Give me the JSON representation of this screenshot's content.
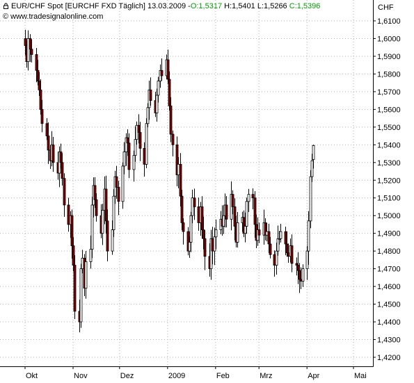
{
  "header": {
    "symbol": "EUR/CHF Spot [EURCHF FXD  Täglich]",
    "date": "13.03.2009",
    "open": "O:1,5317",
    "high": "H:1,5401",
    "low": "L:1,5266",
    "close": "C:1,5396",
    "source": "© www.tradesignalonline.com",
    "currency": "CHF"
  },
  "colors": {
    "up_body": "#ffffff",
    "down_body": "#800000",
    "outline": "#000000",
    "grid": "#b0b0b0",
    "ohlc_green": "#00a000"
  },
  "chart_data": {
    "type": "candlestick",
    "title": "EUR/CHF Spot [EURCHF FXD  Täglich]",
    "y_unit": "CHF",
    "ylim": [
      1.41,
      1.62
    ],
    "yticks": [
      "1,4200",
      "1,4300",
      "1,4400",
      "1,4500",
      "1,4600",
      "1,4700",
      "1,4800",
      "1,4900",
      "1,5000",
      "1,5100",
      "1,5200",
      "1,5300",
      "1,5400",
      "1,5500",
      "1,5600",
      "1,5700",
      "1,5800",
      "1,5900",
      "1,6000",
      "1,6100"
    ],
    "ytick_values": [
      1.42,
      1.43,
      1.44,
      1.45,
      1.46,
      1.47,
      1.48,
      1.49,
      1.5,
      1.51,
      1.52,
      1.53,
      1.54,
      1.55,
      1.56,
      1.57,
      1.58,
      1.59,
      1.6,
      1.61
    ],
    "xticks": [
      {
        "label": "Okt",
        "day": 1
      },
      {
        "label": "Nov",
        "day": 32
      },
      {
        "label": "Dez",
        "day": 62
      },
      {
        "label": "2009",
        "day": 93
      },
      {
        "label": "Feb",
        "day": 124
      },
      {
        "label": "Mrz",
        "day": 152
      },
      {
        "label": "Apr",
        "day": 183
      },
      {
        "label": "Mai",
        "day": 213
      }
    ],
    "grid": true,
    "last_bar": {
      "date": "13.03.2009",
      "open": 1.5317,
      "high": 1.5401,
      "low": 1.5266,
      "close": 1.5396
    },
    "closes": [
      1.596,
      1.587,
      1.6,
      1.594,
      1.591,
      1.582,
      1.576,
      1.571,
      1.56,
      1.552,
      1.545,
      1.537,
      1.531,
      1.54,
      1.53,
      1.524,
      1.536,
      1.53,
      1.521,
      1.506,
      1.495,
      1.5,
      1.483,
      1.472,
      1.446,
      1.44,
      1.47,
      1.476,
      1.459,
      1.474,
      1.481,
      1.506,
      1.517,
      1.509,
      1.5,
      1.49,
      1.503,
      1.515,
      1.497,
      1.48,
      1.492,
      1.511,
      1.522,
      1.516,
      1.508,
      1.528,
      1.536,
      1.544,
      1.541,
      1.526,
      1.534,
      1.543,
      1.551,
      1.547,
      1.538,
      1.529,
      1.552,
      1.561,
      1.571,
      1.565,
      1.558,
      1.568,
      1.576,
      1.582,
      1.579,
      1.588,
      1.577,
      1.562,
      1.546,
      1.54,
      1.523,
      1.529,
      1.511,
      1.496,
      1.491,
      1.48,
      1.485,
      1.5,
      1.51,
      1.505,
      1.496,
      1.505,
      1.492,
      1.487,
      1.477,
      1.47,
      1.487,
      1.48,
      1.488,
      1.492,
      1.498,
      1.494,
      1.5,
      1.506,
      1.498,
      1.512,
      1.505,
      1.494,
      1.485,
      1.496,
      1.499,
      1.49,
      1.494,
      1.508,
      1.512,
      1.51,
      1.495,
      1.486,
      1.492,
      1.489,
      1.496,
      1.489,
      1.491,
      1.484,
      1.478,
      1.472,
      1.48,
      1.487,
      1.487,
      1.491,
      1.484,
      1.479,
      1.477,
      1.483,
      1.473,
      1.472,
      1.469,
      1.464,
      1.463,
      1.47,
      1.48,
      1.497,
      1.522,
      1.531,
      1.5396
    ],
    "bar_days": [
      1,
      2,
      3,
      4,
      5,
      8,
      9,
      10,
      11,
      12,
      15,
      16,
      17,
      18,
      19,
      22,
      23,
      24,
      25,
      26,
      29,
      30,
      31,
      32,
      33,
      36,
      37,
      38,
      39,
      40,
      43,
      44,
      45,
      46,
      47,
      50,
      51,
      52,
      53,
      54,
      57,
      58,
      59,
      60,
      61,
      64,
      65,
      66,
      67,
      68,
      71,
      72,
      73,
      74,
      75,
      78,
      79,
      80,
      81,
      82,
      85,
      86,
      87,
      88,
      89,
      92,
      93,
      94,
      95,
      96,
      99,
      100,
      101,
      102,
      103,
      106,
      107,
      108,
      109,
      110,
      113,
      114,
      115,
      116,
      117,
      120,
      121,
      122,
      123,
      124,
      127,
      128,
      129,
      130,
      131,
      134,
      135,
      136,
      137,
      138,
      141,
      142,
      143,
      144,
      145,
      148,
      149,
      150,
      151,
      152,
      155,
      156,
      157,
      158,
      159,
      162,
      163,
      164,
      165,
      166,
      169,
      170,
      171,
      172,
      173,
      176,
      177,
      178,
      179,
      180,
      183,
      184,
      185,
      186,
      187
    ]
  }
}
